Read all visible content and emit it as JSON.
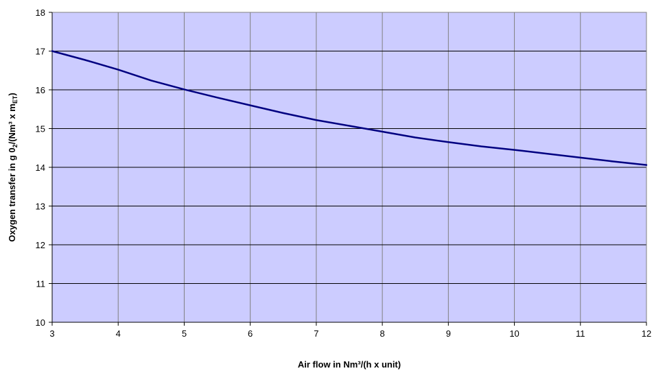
{
  "colors": {
    "plot_background": "#ccccff",
    "series_line": "#000080",
    "grid_major": "#000000",
    "grid_vertical": "#7f7f7f"
  },
  "chart_data": {
    "type": "line",
    "title": "",
    "xlabel": "Air flow  in Nm³/(h x unit)",
    "ylabel": {
      "main": "Oxygen transfer  in g 0",
      "sub_o2": "2",
      "unit_prefix": "/(Nm³ x m",
      "sub_et": "ET",
      "unit_suffix": ")"
    },
    "xlim": [
      3,
      12
    ],
    "ylim": [
      10,
      18
    ],
    "x_ticks": [
      "3",
      "4",
      "5",
      "6",
      "7",
      "8",
      "9",
      "10",
      "11",
      "12"
    ],
    "y_ticks": [
      "10",
      "11",
      "12",
      "13",
      "14",
      "15",
      "16",
      "17",
      "18"
    ],
    "grid": true,
    "legend": "none",
    "series": [
      {
        "x": [
          3,
          3.5,
          4,
          4.5,
          5,
          5.5,
          6,
          6.5,
          7,
          7.5,
          8,
          8.5,
          9,
          9.5,
          10,
          10.5,
          11,
          11.5,
          12
        ],
        "values": [
          17.0,
          16.77,
          16.52,
          16.24,
          16.01,
          15.8,
          15.6,
          15.4,
          15.22,
          15.07,
          14.92,
          14.77,
          14.65,
          14.54,
          14.45,
          14.35,
          14.25,
          14.15,
          14.06
        ]
      }
    ]
  }
}
